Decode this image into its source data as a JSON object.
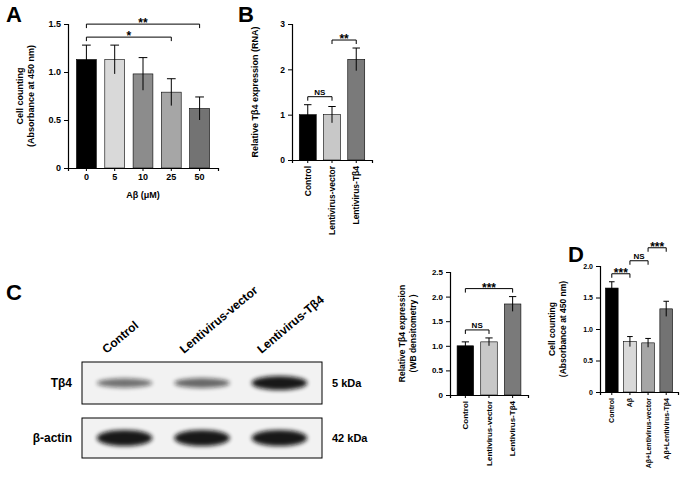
{
  "chart_data": [
    {
      "type": "bar",
      "title": "A",
      "categories": [
        "0",
        "5",
        "10",
        "25",
        "50"
      ],
      "values": [
        1.13,
        1.13,
        0.98,
        0.79,
        0.62
      ],
      "errors": [
        0.15,
        0.15,
        0.17,
        0.14,
        0.12
      ],
      "colors": [
        "#000000",
        "#d9d9d9",
        "#8c8c8c",
        "#a6a6a6",
        "#737373"
      ],
      "x_label": "Aβ (μM)",
      "y_label": [
        "Cell counting",
        "(Absorbance at 450 nm)"
      ],
      "ylim": [
        0,
        1.5
      ],
      "yticks": [
        0,
        0.5,
        {
          "value": 1,
          "label": "1.0"
        },
        1.5
      ],
      "annotations": [
        {
          "text": "*",
          "from": "0",
          "to": "25"
        },
        {
          "text": "**",
          "from": "0",
          "to": "50"
        }
      ]
    },
    {
      "type": "bar",
      "title": "B",
      "categories": [
        "Control",
        "Lentivirus-vector",
        "Lentivirus-Tβ4"
      ],
      "values": [
        1.0,
        1.0,
        2.22
      ],
      "errors": [
        0.22,
        0.18,
        0.25
      ],
      "colors": [
        "#000000",
        "#c8c8c8",
        "#7a7a7a"
      ],
      "y_label": [
        "Relative Tβ4 expression (RNA)"
      ],
      "ylim": [
        0,
        3
      ],
      "yticks": [
        0,
        1,
        2,
        3
      ],
      "annotations": [
        {
          "text": "NS",
          "from": "Control",
          "to": "Lentivirus-vector"
        },
        {
          "text": "**",
          "from": "Lentivirus-vector",
          "to": "Lentivirus-Tβ4"
        }
      ]
    },
    {
      "type": "blot",
      "title": "C",
      "lanes": [
        "Control",
        "Lentivirus-vector",
        "Lentivirus-Tβ4"
      ],
      "bands": [
        {
          "name": "Tβ4",
          "size": "5 kDa",
          "intensity": [
            1.0,
            1.1,
            1.85
          ]
        },
        {
          "name": "β-actin",
          "size": "42 kDa",
          "intensity": [
            1.0,
            1.0,
            1.0
          ]
        }
      ]
    },
    {
      "type": "bar",
      "categories": [
        "Control",
        "Lentivirus-vector",
        "Lentivirus-Tβ4"
      ],
      "values": [
        1.0,
        1.08,
        1.85
      ],
      "errors": [
        0.08,
        0.08,
        0.15
      ],
      "colors": [
        "#000000",
        "#c8c8c8",
        "#7a7a7a"
      ],
      "y_label": [
        "Relative Tβ4 expression",
        "(WB densitometry )"
      ],
      "ylim": [
        0,
        2.5
      ],
      "yticks": [
        0,
        0.5,
        {
          "value": 1,
          "label": "1.0"
        },
        1.5,
        {
          "value": 2,
          "label": "2.0"
        },
        2.5
      ],
      "annotations": [
        {
          "text": "NS",
          "from": "Control",
          "to": "Lentivirus-vector"
        },
        {
          "text": "***",
          "from": "Control",
          "to": "Lentivirus-Tβ4"
        }
      ]
    },
    {
      "type": "bar",
      "title": "D",
      "categories": [
        "Control",
        "Aβ",
        "Aβ+Lentivirus-vector",
        "Aβ+Lentivirus-Tβ4"
      ],
      "values": [
        1.65,
        0.8,
        0.78,
        1.32
      ],
      "errors": [
        0.1,
        0.08,
        0.07,
        0.12
      ],
      "colors": [
        "#000000",
        "#d9d9d9",
        "#a6a6a6",
        "#737373"
      ],
      "y_label": [
        "Cell counting",
        "(Absorbance at 450 nm)"
      ],
      "ylim": [
        0,
        2.0
      ],
      "yticks": [
        0,
        0.5,
        {
          "value": 1,
          "label": "1.0"
        },
        1.5,
        {
          "value": 2,
          "label": "2.0"
        }
      ],
      "annotations": [
        {
          "text": "***",
          "from": "Control",
          "to": "Aβ"
        },
        {
          "text": "NS",
          "from": "Aβ",
          "to": "Aβ+Lentivirus-vector"
        },
        {
          "text": "***",
          "from": "Aβ+Lentivirus-vector",
          "to": "Aβ+Lentivirus-Tβ4"
        }
      ]
    }
  ]
}
